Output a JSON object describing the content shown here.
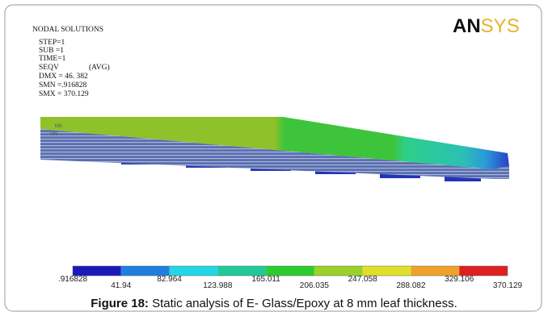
{
  "header": {
    "title": "NODAL SOLUTIONS",
    "step": "STEP=1",
    "sub": "SUB =1",
    "time": "TIME=1",
    "result": "SEQV",
    "avg": "(AVG)",
    "dmx": "DMX = 46. 382",
    "smn": "SMN =.916828",
    "smx": "SMX = 370.129"
  },
  "logo": {
    "first": "AN",
    "second": "SYS"
  },
  "model": {
    "max_label": "MX",
    "min_label": "MN"
  },
  "legend": {
    "labels": [
      ".916828",
      "41.94",
      "82.964",
      "123.988",
      "165.011",
      "206.035",
      "247.058",
      "288.082",
      "329.106",
      "370.129"
    ]
  },
  "caption": {
    "label": "Figure 18:",
    "text": "Static analysis of E- Glass/Epoxy at 8 mm leaf thickness."
  }
}
